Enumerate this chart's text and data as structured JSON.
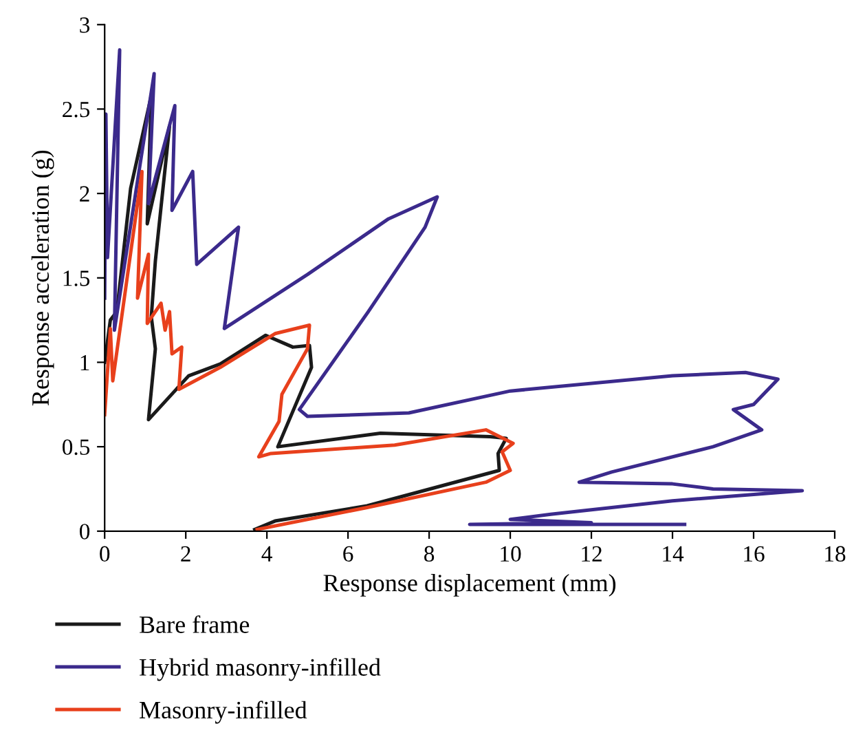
{
  "chart_data": {
    "type": "line",
    "xlabel": "Response displacement (mm)",
    "ylabel": "Response acceleration (g)",
    "xlim": [
      0,
      18
    ],
    "ylim": [
      0,
      3
    ],
    "xticks": [
      0,
      2,
      4,
      6,
      8,
      10,
      12,
      14,
      16,
      18
    ],
    "yticks": [
      0,
      0.5,
      1,
      1.5,
      2,
      2.5,
      3
    ],
    "grid": false,
    "legend": "bottom",
    "marker": "none",
    "line_style": "solid",
    "series": [
      {
        "name": "Bare frame",
        "color": "#1a1a1a",
        "x": [
          0,
          0.14,
          0.3,
          0.64,
          1.15,
          1.05,
          1.6,
          1.25,
          1.15,
          1.25,
          1.08,
          2.07,
          2.85,
          3.97,
          4.64,
          5.05,
          5.1,
          4.27,
          6.8,
          9.5,
          9.9,
          9.7,
          9.73,
          6.47,
          4.2,
          3.7
        ],
        "values": [
          1.0,
          1.25,
          1.3,
          2.03,
          2.58,
          1.82,
          2.4,
          1.6,
          1.27,
          1.08,
          0.66,
          0.92,
          0.99,
          1.16,
          1.09,
          1.1,
          0.97,
          0.5,
          0.58,
          0.56,
          0.55,
          0.46,
          0.36,
          0.15,
          0.06,
          0.01
        ]
      },
      {
        "name": "Hybrid masonry-infilled",
        "color": "#3b2a8c",
        "x": [
          0,
          0.03,
          0.07,
          0.37,
          0.24,
          1.22,
          1.08,
          1.73,
          1.66,
          2.17,
          2.27,
          3.3,
          2.95,
          5.0,
          7.0,
          8.2,
          7.9,
          6.5,
          4.8,
          5.0,
          7.5,
          10,
          14,
          15.8,
          16.6,
          16.0,
          15.5,
          16.2,
          15,
          12.5,
          11.7,
          14,
          15,
          17.2,
          14,
          11,
          10,
          12,
          9,
          14.3
        ],
        "values": [
          1.38,
          2.47,
          1.62,
          2.85,
          1.19,
          2.71,
          1.94,
          2.52,
          1.9,
          2.13,
          1.58,
          1.8,
          1.2,
          1.52,
          1.85,
          1.98,
          1.8,
          1.3,
          0.72,
          0.68,
          0.7,
          0.83,
          0.92,
          0.94,
          0.9,
          0.75,
          0.72,
          0.6,
          0.5,
          0.35,
          0.29,
          0.28,
          0.25,
          0.24,
          0.18,
          0.1,
          0.07,
          0.05,
          0.04,
          0.04
        ]
      },
      {
        "name": "Masonry-infilled",
        "color": "#e8401c",
        "x": [
          0,
          0.14,
          0.2,
          0.92,
          0.81,
          1.08,
          1.05,
          1.39,
          1.49,
          1.6,
          1.66,
          1.9,
          1.83,
          2.85,
          4.2,
          5.05,
          5.0,
          4.37,
          4.3,
          3.8,
          4.1,
          7.15,
          9.4,
          10.07,
          9.8,
          10.0,
          9.4,
          6.47,
          3.76
        ],
        "values": [
          0.69,
          1.2,
          0.89,
          2.13,
          1.38,
          1.64,
          1.23,
          1.35,
          1.19,
          1.3,
          1.05,
          1.09,
          0.84,
          0.97,
          1.17,
          1.22,
          1.08,
          0.81,
          0.65,
          0.44,
          0.46,
          0.51,
          0.6,
          0.52,
          0.47,
          0.36,
          0.29,
          0.14,
          0.01
        ]
      }
    ]
  }
}
